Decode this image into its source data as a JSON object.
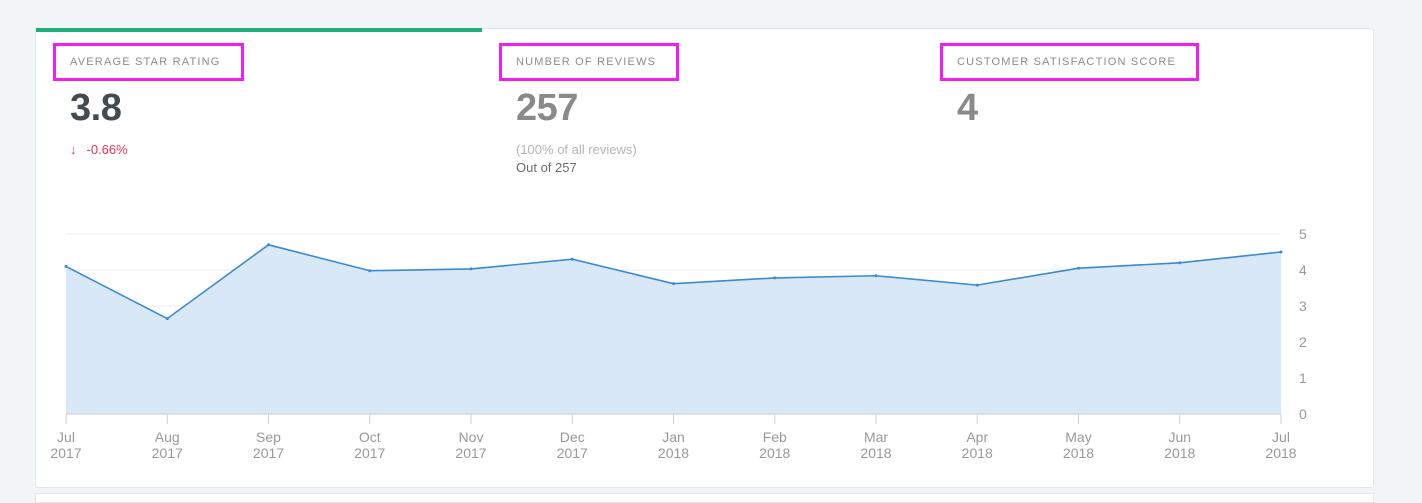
{
  "metrics": [
    {
      "label": "AVERAGE STAR RATING",
      "value": "3.8",
      "change_arrow": "↓",
      "change": "-0.66%"
    },
    {
      "label": "NUMBER OF REVIEWS",
      "value": "257",
      "sub1": "(100% of all reviews)",
      "sub2": "Out of 257"
    },
    {
      "label": "CUSTOMER SATISFACTION SCORE",
      "value": "4"
    }
  ],
  "colors": {
    "accent": "#1fae7a",
    "highlight": "#f01ef0",
    "negative": "#e8344e",
    "line": "#3a8ad6",
    "area": "#d9e8f6"
  },
  "chart_data": {
    "type": "area",
    "x": [
      "Jul 2017",
      "Aug 2017",
      "Sep 2017",
      "Oct 2017",
      "Nov 2017",
      "Dec 2017",
      "Jan 2018",
      "Feb 2018",
      "Mar 2018",
      "Apr 2018",
      "May 2018",
      "Jun 2018",
      "Jul 2018"
    ],
    "x_tick_month": [
      "Jul",
      "Aug",
      "Sep",
      "Oct",
      "Nov",
      "Dec",
      "Jan",
      "Feb",
      "Mar",
      "Apr",
      "May",
      "Jun",
      "Jul"
    ],
    "x_tick_year": [
      "2017",
      "2017",
      "2017",
      "2017",
      "2017",
      "2017",
      "2018",
      "2018",
      "2018",
      "2018",
      "2018",
      "2018",
      "2018"
    ],
    "values": [
      4.1,
      2.65,
      4.7,
      3.98,
      4.03,
      4.3,
      3.62,
      3.78,
      3.84,
      3.58,
      4.05,
      4.2,
      4.5
    ],
    "ylim": [
      0,
      5
    ],
    "yticks": [
      0,
      1,
      2,
      3,
      4,
      5
    ],
    "y_axis_side": "right",
    "grid": true,
    "title": "",
    "xlabel": "",
    "ylabel": ""
  }
}
